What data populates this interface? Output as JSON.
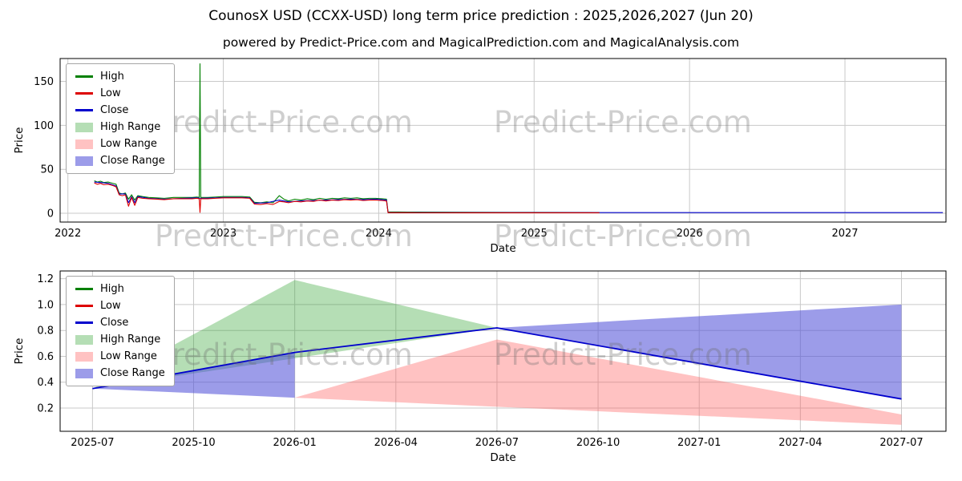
{
  "title": "CounosX USD (CCXX-USD) long term price prediction : 2025,2026,2027 (Jun 20)",
  "subtitle": "powered by Predict-Price.com and MagicalPrediction.com and MagicalAnalysis.com",
  "watermark": {
    "text": "Predict-Price.com"
  },
  "colors": {
    "high": "#008000",
    "low": "#dd0000",
    "close": "#0000cd",
    "high_range": "rgba(44,160,44,0.35)",
    "low_range": "rgba(255,80,80,0.35)",
    "close_range": "rgba(75,75,215,0.55)",
    "grid": "#c9c9c9",
    "axis": "#000000"
  },
  "legend": {
    "items": [
      {
        "label": "High",
        "kind": "line",
        "color_key": "high"
      },
      {
        "label": "Low",
        "kind": "line",
        "color_key": "low"
      },
      {
        "label": "Close",
        "kind": "line",
        "color_key": "close"
      },
      {
        "label": "High Range",
        "kind": "patch",
        "color_key": "high_range"
      },
      {
        "label": "Low Range",
        "kind": "patch",
        "color_key": "low_range"
      },
      {
        "label": "Close Range",
        "kind": "patch",
        "color_key": "close_range"
      }
    ]
  },
  "chart_data": [
    {
      "type": "line",
      "name": "historical-price",
      "xlabel": "Date",
      "ylabel": "Price",
      "xlim": [
        2021.95,
        2027.65
      ],
      "ylim": [
        -10,
        176
      ],
      "grid": true,
      "legend_position": "upper left",
      "x_ticks": [
        {
          "value": 2022,
          "label": "2022"
        },
        {
          "value": 2023,
          "label": "2023"
        },
        {
          "value": 2024,
          "label": "2024"
        },
        {
          "value": 2025,
          "label": "2025"
        },
        {
          "value": 2026,
          "label": "2026"
        },
        {
          "value": 2027,
          "label": "2027"
        }
      ],
      "y_ticks": [
        {
          "value": 0,
          "label": "0"
        },
        {
          "value": 50,
          "label": "50"
        },
        {
          "value": 100,
          "label": "100"
        },
        {
          "value": 150,
          "label": "150"
        }
      ],
      "bands": [],
      "series": [
        {
          "name": "High",
          "color_key": "high",
          "width": 1.1,
          "points": [
            [
              2022.17,
              37
            ],
            [
              2022.19,
              35.5
            ],
            [
              2022.21,
              36.5
            ],
            [
              2022.23,
              35
            ],
            [
              2022.26,
              35.5
            ],
            [
              2022.29,
              34
            ],
            [
              2022.31,
              33
            ],
            [
              2022.33,
              23
            ],
            [
              2022.35,
              22
            ],
            [
              2022.37,
              23
            ],
            [
              2022.39,
              16
            ],
            [
              2022.41,
              21
            ],
            [
              2022.43,
              15
            ],
            [
              2022.45,
              20
            ],
            [
              2022.48,
              19
            ],
            [
              2022.52,
              18
            ],
            [
              2022.57,
              17.5
            ],
            [
              2022.62,
              17
            ],
            [
              2022.68,
              18
            ],
            [
              2022.74,
              18
            ],
            [
              2022.8,
              18
            ],
            [
              2022.83,
              18.5
            ],
            [
              2022.845,
              18
            ],
            [
              2022.85,
              170
            ],
            [
              2022.855,
              18
            ],
            [
              2022.9,
              18
            ],
            [
              2022.95,
              18.5
            ],
            [
              2023.0,
              19
            ],
            [
              2023.06,
              19
            ],
            [
              2023.12,
              19
            ],
            [
              2023.17,
              18.5
            ],
            [
              2023.2,
              12.5
            ],
            [
              2023.24,
              12
            ],
            [
              2023.28,
              13
            ],
            [
              2023.32,
              12
            ],
            [
              2023.36,
              20
            ],
            [
              2023.39,
              16
            ],
            [
              2023.42,
              14
            ],
            [
              2023.46,
              16
            ],
            [
              2023.5,
              15
            ],
            [
              2023.54,
              16.5
            ],
            [
              2023.58,
              15.5
            ],
            [
              2023.62,
              17
            ],
            [
              2023.66,
              16
            ],
            [
              2023.7,
              17
            ],
            [
              2023.74,
              16.5
            ],
            [
              2023.78,
              17.5
            ],
            [
              2023.82,
              17
            ],
            [
              2023.86,
              17.5
            ],
            [
              2023.9,
              16.5
            ],
            [
              2023.94,
              17
            ],
            [
              2023.98,
              17
            ],
            [
              2024.02,
              16.5
            ],
            [
              2024.05,
              16
            ],
            [
              2024.06,
              1.6
            ],
            [
              2024.25,
              1.3
            ],
            [
              2024.6,
              1.1
            ],
            [
              2025.0,
              1.0
            ],
            [
              2025.42,
              0.9
            ]
          ]
        },
        {
          "name": "Close",
          "color_key": "close",
          "width": 1.1,
          "points": [
            [
              2022.17,
              35.5
            ],
            [
              2022.21,
              35
            ],
            [
              2022.26,
              34
            ],
            [
              2022.31,
              31
            ],
            [
              2022.33,
              22
            ],
            [
              2022.37,
              22
            ],
            [
              2022.39,
              12
            ],
            [
              2022.41,
              19
            ],
            [
              2022.43,
              12
            ],
            [
              2022.45,
              19
            ],
            [
              2022.52,
              17
            ],
            [
              2022.62,
              16
            ],
            [
              2022.74,
              17
            ],
            [
              2022.83,
              17.5
            ],
            [
              2022.85,
              17
            ],
            [
              2022.95,
              17.5
            ],
            [
              2023.0,
              18
            ],
            [
              2023.12,
              18
            ],
            [
              2023.17,
              17.5
            ],
            [
              2023.2,
              11.5
            ],
            [
              2023.28,
              12
            ],
            [
              2023.36,
              15
            ],
            [
              2023.42,
              13
            ],
            [
              2023.5,
              14
            ],
            [
              2023.58,
              14.5
            ],
            [
              2023.66,
              15
            ],
            [
              2023.74,
              15.5
            ],
            [
              2023.82,
              16
            ],
            [
              2023.9,
              15.5
            ],
            [
              2023.98,
              16
            ],
            [
              2024.05,
              15
            ],
            [
              2024.06,
              0.8
            ],
            [
              2024.3,
              0.8
            ],
            [
              2024.8,
              0.8
            ],
            [
              2025.42,
              0.8
            ],
            [
              2026.0,
              0.8
            ],
            [
              2026.5,
              0.8
            ],
            [
              2027.0,
              0.8
            ],
            [
              2027.63,
              0.8
            ]
          ]
        },
        {
          "name": "Low",
          "color_key": "low",
          "width": 1.1,
          "points": [
            [
              2022.17,
              34.5
            ],
            [
              2022.19,
              33
            ],
            [
              2022.21,
              34
            ],
            [
              2022.23,
              32.5
            ],
            [
              2022.26,
              33
            ],
            [
              2022.29,
              31.5
            ],
            [
              2022.31,
              30
            ],
            [
              2022.33,
              21
            ],
            [
              2022.35,
              20
            ],
            [
              2022.37,
              21
            ],
            [
              2022.39,
              8
            ],
            [
              2022.41,
              18
            ],
            [
              2022.43,
              9
            ],
            [
              2022.45,
              18
            ],
            [
              2022.48,
              17
            ],
            [
              2022.52,
              16.5
            ],
            [
              2022.57,
              16
            ],
            [
              2022.62,
              15.5
            ],
            [
              2022.68,
              16.5
            ],
            [
              2022.74,
              16.5
            ],
            [
              2022.8,
              16.5
            ],
            [
              2022.83,
              17
            ],
            [
              2022.845,
              16.5
            ],
            [
              2022.85,
              1
            ],
            [
              2022.855,
              16.5
            ],
            [
              2022.9,
              16.5
            ],
            [
              2022.95,
              17
            ],
            [
              2023.0,
              17.5
            ],
            [
              2023.06,
              17.5
            ],
            [
              2023.12,
              17.5
            ],
            [
              2023.17,
              17
            ],
            [
              2023.2,
              10.5
            ],
            [
              2023.24,
              10
            ],
            [
              2023.28,
              11
            ],
            [
              2023.32,
              10
            ],
            [
              2023.36,
              13.5
            ],
            [
              2023.39,
              13
            ],
            [
              2023.42,
              12
            ],
            [
              2023.46,
              13.5
            ],
            [
              2023.5,
              13
            ],
            [
              2023.54,
              14
            ],
            [
              2023.58,
              13.5
            ],
            [
              2023.62,
              15
            ],
            [
              2023.66,
              14
            ],
            [
              2023.7,
              15
            ],
            [
              2023.74,
              14.5
            ],
            [
              2023.78,
              15.5
            ],
            [
              2023.82,
              15
            ],
            [
              2023.86,
              15.5
            ],
            [
              2023.9,
              14.5
            ],
            [
              2023.94,
              15
            ],
            [
              2023.98,
              15
            ],
            [
              2024.02,
              14.5
            ],
            [
              2024.05,
              14
            ],
            [
              2024.06,
              0.7
            ],
            [
              2024.25,
              0.6
            ],
            [
              2024.6,
              0.5
            ],
            [
              2025.0,
              0.5
            ],
            [
              2025.42,
              0.5
            ]
          ]
        }
      ]
    },
    {
      "type": "line",
      "name": "prediction-price",
      "xlabel": "Date",
      "ylabel": "Price",
      "xlim": [
        2025.42,
        2027.61
      ],
      "ylim": [
        0.02,
        1.26
      ],
      "grid": true,
      "legend_position": "upper left",
      "x_ticks": [
        {
          "value": 2025.5,
          "label": "2025-07"
        },
        {
          "value": 2025.75,
          "label": "2025-10"
        },
        {
          "value": 2026.0,
          "label": "2026-01"
        },
        {
          "value": 2026.25,
          "label": "2026-04"
        },
        {
          "value": 2026.5,
          "label": "2026-07"
        },
        {
          "value": 2026.75,
          "label": "2026-10"
        },
        {
          "value": 2027.0,
          "label": "2027-01"
        },
        {
          "value": 2027.25,
          "label": "2027-04"
        },
        {
          "value": 2027.5,
          "label": "2027-07"
        }
      ],
      "y_ticks": [
        {
          "value": 0.2,
          "label": "0.2"
        },
        {
          "value": 0.4,
          "label": "0.4"
        },
        {
          "value": 0.6,
          "label": "0.6"
        },
        {
          "value": 0.8,
          "label": "0.8"
        },
        {
          "value": 1.0,
          "label": "1.0"
        },
        {
          "value": 1.2,
          "label": "1.2"
        }
      ],
      "bands": [
        {
          "name": "High Range",
          "color_key": "high_range",
          "points": [
            [
              2025.5,
              0.35
            ],
            [
              2026.0,
              1.19
            ],
            [
              2026.5,
              0.82
            ]
          ]
        },
        {
          "name": "Low Range",
          "color_key": "low_range",
          "points": [
            [
              2026.0,
              0.28
            ],
            [
              2026.5,
              0.73
            ],
            [
              2027.5,
              0.15
            ],
            [
              2027.5,
              0.07
            ]
          ]
        },
        {
          "name": "Close Range",
          "color_key": "close_range",
          "points": [
            [
              2025.5,
              0.35
            ],
            [
              2026.0,
              0.63
            ],
            [
              2026.0,
              0.28
            ]
          ]
        },
        {
          "name": "Close Range",
          "color_key": "close_range",
          "points": [
            [
              2026.5,
              0.82
            ],
            [
              2027.5,
              1.0
            ],
            [
              2027.5,
              0.27
            ]
          ]
        }
      ],
      "series": [
        {
          "name": "Close",
          "color_key": "close",
          "width": 1.8,
          "points": [
            [
              2025.5,
              0.35
            ],
            [
              2026.0,
              0.63
            ],
            [
              2026.5,
              0.82
            ],
            [
              2027.5,
              0.27
            ]
          ]
        }
      ]
    }
  ]
}
